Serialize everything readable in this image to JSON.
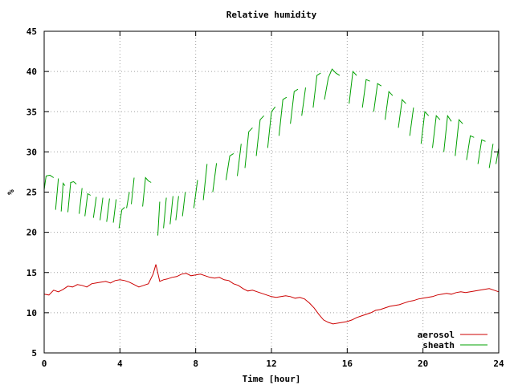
{
  "chart_data": {
    "type": "line",
    "title": "Relative humidity",
    "xlabel": "Time [hour]",
    "ylabel": "%",
    "xlim": [
      0,
      24
    ],
    "ylim": [
      5,
      45
    ],
    "x_ticks": [
      0,
      4,
      8,
      12,
      16,
      20,
      24
    ],
    "y_ticks": [
      5,
      10,
      15,
      20,
      25,
      30,
      35,
      40,
      45
    ],
    "grid": true,
    "legend_position": "bottom-right",
    "series": [
      {
        "name": "aerosol",
        "color": "#cc0000",
        "x": [
          0,
          0.25,
          0.5,
          0.75,
          1,
          1.25,
          1.5,
          1.75,
          2,
          2.25,
          2.5,
          2.75,
          3,
          3.25,
          3.5,
          3.75,
          4,
          4.25,
          4.5,
          4.75,
          5,
          5.25,
          5.5,
          5.75,
          5.9,
          6.1,
          6.3,
          6.5,
          6.75,
          7,
          7.25,
          7.5,
          7.75,
          8,
          8.25,
          8.5,
          8.75,
          9,
          9.25,
          9.5,
          9.75,
          10,
          10.25,
          10.5,
          10.75,
          11,
          11.25,
          11.5,
          11.75,
          12,
          12.25,
          12.5,
          12.75,
          13,
          13.25,
          13.5,
          13.75,
          14,
          14.25,
          14.5,
          14.75,
          15,
          15.25,
          15.5,
          15.75,
          16,
          16.25,
          16.5,
          16.75,
          17,
          17.25,
          17.5,
          17.75,
          18,
          18.25,
          18.5,
          18.75,
          19,
          19.25,
          19.5,
          19.75,
          20,
          20.25,
          20.5,
          20.75,
          21,
          21.25,
          21.5,
          21.75,
          22,
          22.25,
          22.5,
          22.75,
          23,
          23.25,
          23.5,
          23.75,
          24
        ],
        "values": [
          12.3,
          12.2,
          12.8,
          12.6,
          12.9,
          13.3,
          13.2,
          13.5,
          13.4,
          13.2,
          13.6,
          13.7,
          13.8,
          13.9,
          13.7,
          14.0,
          14.1,
          14.0,
          13.8,
          13.5,
          13.2,
          13.4,
          13.6,
          14.8,
          16.0,
          13.9,
          14.1,
          14.2,
          14.4,
          14.5,
          14.8,
          14.9,
          14.6,
          14.7,
          14.8,
          14.6,
          14.4,
          14.3,
          14.4,
          14.1,
          14.0,
          13.6,
          13.4,
          13.0,
          12.7,
          12.8,
          12.6,
          12.4,
          12.2,
          12.0,
          11.9,
          12.0,
          12.1,
          12.0,
          11.8,
          11.9,
          11.7,
          11.2,
          10.6,
          9.8,
          9.1,
          8.8,
          8.6,
          8.7,
          8.8,
          8.9,
          9.1,
          9.4,
          9.6,
          9.8,
          10.0,
          10.3,
          10.4,
          10.6,
          10.8,
          10.9,
          11.0,
          11.2,
          11.4,
          11.5,
          11.7,
          11.8,
          11.9,
          12.0,
          12.2,
          12.3,
          12.4,
          12.3,
          12.5,
          12.6,
          12.5,
          12.6,
          12.7,
          12.8,
          12.9,
          13.0,
          12.8,
          12.6
        ]
      },
      {
        "name": "sheath",
        "color": "#00a000",
        "style": "repeated rising segments with gaps",
        "segments": [
          {
            "x": [
              0.0,
              0.1,
              0.3,
              0.5
            ],
            "values": [
              25.3,
              27.0,
              27.1,
              26.8
            ]
          },
          {
            "x": [
              0.6,
              0.75
            ],
            "values": [
              22.8,
              26.7
            ]
          },
          {
            "x": [
              0.9,
              1.0,
              1.1
            ],
            "values": [
              22.6,
              26.1,
              25.8
            ]
          },
          {
            "x": [
              1.25,
              1.4,
              1.55,
              1.7
            ],
            "values": [
              22.5,
              26.2,
              26.3,
              26.0
            ]
          },
          {
            "x": [
              1.85,
              2.0
            ],
            "values": [
              22.3,
              25.5
            ]
          },
          {
            "x": [
              2.15,
              2.3,
              2.45
            ],
            "values": [
              22.0,
              24.8,
              24.6
            ]
          },
          {
            "x": [
              2.6,
              2.75
            ],
            "values": [
              21.8,
              24.4
            ]
          },
          {
            "x": [
              2.95,
              3.1
            ],
            "values": [
              21.5,
              24.3
            ]
          },
          {
            "x": [
              3.3,
              3.45
            ],
            "values": [
              21.3,
              24.2
            ]
          },
          {
            "x": [
              3.65,
              3.8
            ],
            "values": [
              21.2,
              24.1
            ]
          },
          {
            "x": [
              3.95,
              4.1,
              4.25
            ],
            "values": [
              20.5,
              22.8,
              23.1
            ]
          },
          {
            "x": [
              4.35,
              4.5
            ],
            "values": [
              23.0,
              25.0
            ]
          },
          {
            "x": [
              4.6,
              4.75
            ],
            "values": [
              23.5,
              26.8
            ]
          },
          {
            "x": [
              5.2,
              5.35,
              5.5,
              5.65
            ],
            "values": [
              23.2,
              26.8,
              26.4,
              26.2
            ]
          },
          {
            "x": [
              6.0,
              6.1
            ],
            "values": [
              19.6,
              23.8
            ]
          },
          {
            "x": [
              6.3,
              6.45
            ],
            "values": [
              20.5,
              24.3
            ]
          },
          {
            "x": [
              6.65,
              6.8
            ],
            "values": [
              21.0,
              24.5
            ]
          },
          {
            "x": [
              6.95,
              7.1
            ],
            "values": [
              21.5,
              24.5
            ]
          },
          {
            "x": [
              7.3,
              7.45
            ],
            "values": [
              22.0,
              25.0
            ]
          },
          {
            "x": [
              7.9,
              8.1
            ],
            "values": [
              23.0,
              26.5
            ]
          },
          {
            "x": [
              8.4,
              8.6
            ],
            "values": [
              24.0,
              28.5
            ]
          },
          {
            "x": [
              8.9,
              9.1
            ],
            "values": [
              25.0,
              28.6
            ]
          },
          {
            "x": [
              9.6,
              9.8,
              10.0
            ],
            "values": [
              26.5,
              29.5,
              29.8
            ]
          },
          {
            "x": [
              10.2,
              10.4
            ],
            "values": [
              27.0,
              31.0
            ]
          },
          {
            "x": [
              10.6,
              10.8,
              11.0
            ],
            "values": [
              28.0,
              32.5,
              33.0
            ]
          },
          {
            "x": [
              11.2,
              11.4,
              11.6
            ],
            "values": [
              29.5,
              34.0,
              34.5
            ]
          },
          {
            "x": [
              11.8,
              12.0,
              12.2
            ],
            "values": [
              30.5,
              35.0,
              35.6
            ]
          },
          {
            "x": [
              12.4,
              12.6,
              12.8
            ],
            "values": [
              32.0,
              36.5,
              36.8
            ]
          },
          {
            "x": [
              13.0,
              13.2,
              13.4
            ],
            "values": [
              33.5,
              37.5,
              37.8
            ]
          },
          {
            "x": [
              13.6,
              13.8
            ],
            "values": [
              34.5,
              38.0
            ]
          },
          {
            "x": [
              14.2,
              14.4,
              14.6
            ],
            "values": [
              35.5,
              39.5,
              39.8
            ]
          },
          {
            "x": [
              14.8,
              15.0,
              15.2,
              15.4,
              15.6
            ],
            "values": [
              36.5,
              39.2,
              40.3,
              39.8,
              39.5
            ]
          },
          {
            "x": [
              16.1,
              16.3,
              16.5
            ],
            "values": [
              36.0,
              40.0,
              39.5
            ]
          },
          {
            "x": [
              16.8,
              17.0,
              17.2
            ],
            "values": [
              35.5,
              39.0,
              38.8
            ]
          },
          {
            "x": [
              17.4,
              17.6,
              17.8
            ],
            "values": [
              35.0,
              38.5,
              38.2
            ]
          },
          {
            "x": [
              18.0,
              18.2,
              18.4
            ],
            "values": [
              34.0,
              37.5,
              37.0
            ]
          },
          {
            "x": [
              18.7,
              18.9,
              19.1
            ],
            "values": [
              33.0,
              36.5,
              36.0
            ]
          },
          {
            "x": [
              19.3,
              19.5
            ],
            "values": [
              32.0,
              35.5
            ]
          },
          {
            "x": [
              19.9,
              20.1,
              20.3
            ],
            "values": [
              31.0,
              35.0,
              34.5
            ]
          },
          {
            "x": [
              20.5,
              20.7,
              20.9
            ],
            "values": [
              30.5,
              34.5,
              34.0
            ]
          },
          {
            "x": [
              21.1,
              21.3,
              21.5
            ],
            "values": [
              30.0,
              34.5,
              33.8
            ]
          },
          {
            "x": [
              21.7,
              21.9,
              22.1
            ],
            "values": [
              29.5,
              34.0,
              33.5
            ]
          },
          {
            "x": [
              22.3,
              22.5,
              22.7
            ],
            "values": [
              29.0,
              32.0,
              31.8
            ]
          },
          {
            "x": [
              22.9,
              23.1,
              23.3
            ],
            "values": [
              28.5,
              31.5,
              31.3
            ]
          },
          {
            "x": [
              23.5,
              23.7
            ],
            "values": [
              28.0,
              31.0
            ]
          },
          {
            "x": [
              23.85,
              24.0
            ],
            "values": [
              28.5,
              30.5
            ]
          }
        ]
      }
    ]
  }
}
